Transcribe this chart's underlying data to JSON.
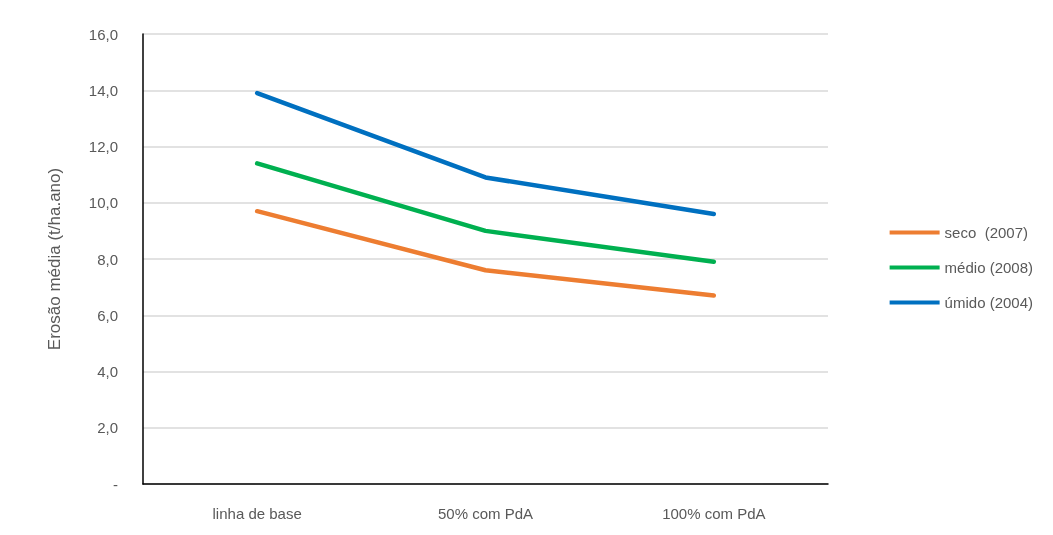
{
  "chart_data": {
    "type": "line",
    "ylabel": "Erosão média (t/ha.ano)",
    "categories": [
      "linha de base",
      "50% com PdA",
      "100% com PdA"
    ],
    "series": [
      {
        "name": "seco  (2007)",
        "color": "#ed7d31",
        "values": [
          9.7,
          7.6,
          6.7
        ]
      },
      {
        "name": "médio (2008)",
        "color": "#00b050",
        "values": [
          11.4,
          9.0,
          7.9
        ]
      },
      {
        "name": "úmido (2004)",
        "color": "#0070c0",
        "values": [
          13.9,
          10.9,
          9.6
        ]
      }
    ],
    "ylim": [
      0,
      16
    ],
    "yticks": [
      {
        "value": 0,
        "label": "-"
      },
      {
        "value": 2,
        "label": "2,0"
      },
      {
        "value": 4,
        "label": "4,0"
      },
      {
        "value": 6,
        "label": "6,0"
      },
      {
        "value": 8,
        "label": "8,0"
      },
      {
        "value": 10,
        "label": "10,0"
      },
      {
        "value": 12,
        "label": "12,0"
      },
      {
        "value": 14,
        "label": "14,0"
      },
      {
        "value": 16,
        "label": "16,0"
      }
    ],
    "grid": "y",
    "legend": "right",
    "marker": "none",
    "line_style": "solid"
  }
}
